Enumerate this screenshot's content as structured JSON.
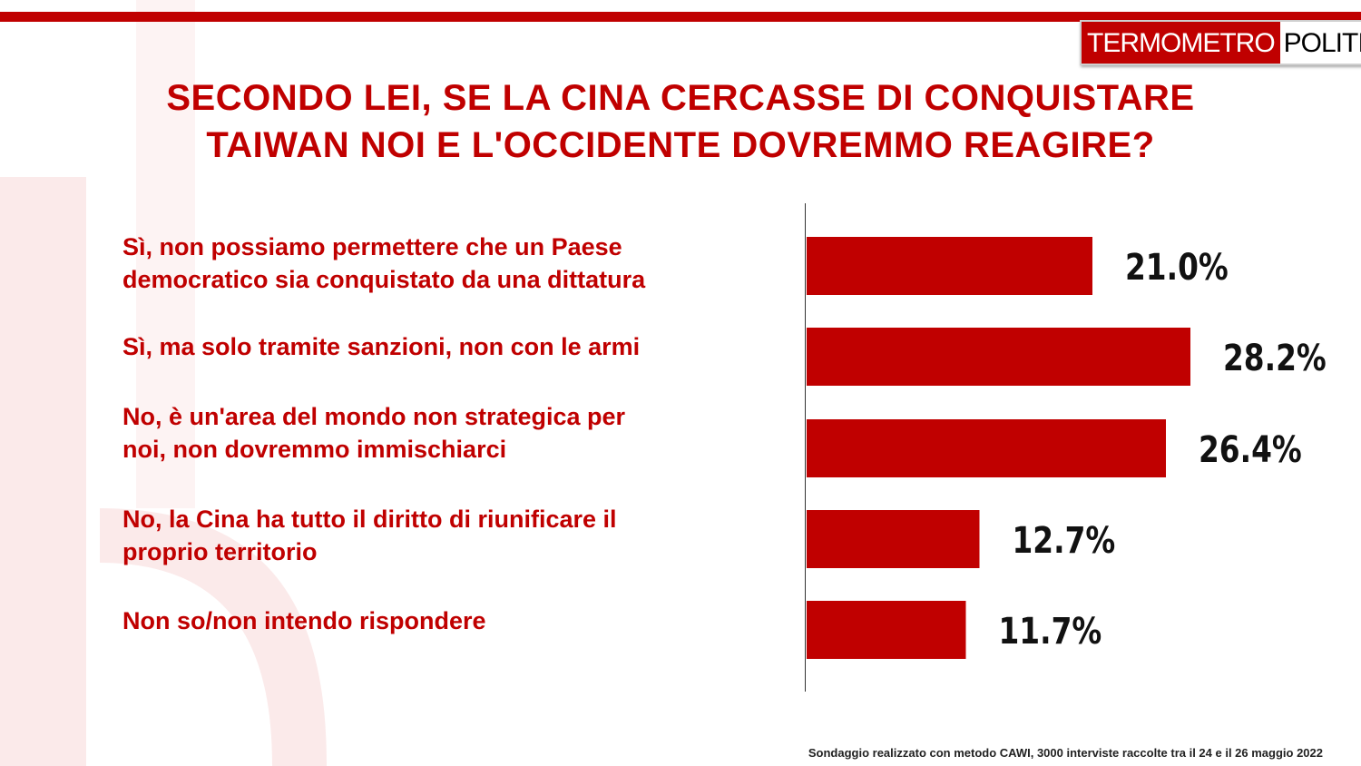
{
  "brand": {
    "part1": "TERMOMETRO",
    "part2": "POLITICO"
  },
  "colors": {
    "accent": "#c00000"
  },
  "chart_data": {
    "type": "bar",
    "orientation": "horizontal",
    "title": "SECONDO LEI, SE LA CINA CERCASSE DI CONQUISTARE TAIWAN NOI E L'OCCIDENTE DOVREMMO REAGIRE?",
    "title_lines": [
      "SECONDO LEI, SE LA CINA CERCASSE DI CONQUISTARE",
      "TAIWAN NOI E L'OCCIDENTE DOVREMMO REAGIRE?"
    ],
    "categories": [
      [
        "Sì, non possiamo permettere che un Paese",
        "democratico sia conquistato da una dittatura"
      ],
      [
        "Sì, ma solo tramite sanzioni, non con le armi"
      ],
      [
        "No, è un'area del mondo non strategica per",
        "noi, non dovremmo immischiarci"
      ],
      [
        "No, la Cina ha tutto il diritto di riunificare il",
        "proprio territorio"
      ],
      [
        "Non so/non intendo rispondere"
      ]
    ],
    "values": [
      21.0,
      28.2,
      26.4,
      12.7,
      11.7
    ],
    "labels": [
      "21.0%",
      "28.2%",
      "26.4%",
      "12.7%",
      "11.7%"
    ],
    "unit": "%",
    "bar_color": "#c00000",
    "xlim": [
      0,
      30
    ],
    "grid": false,
    "legend": "none"
  },
  "footer": "Sondaggio realizzato con metodo CAWI, 3000 interviste raccolte tra il 24 e il 26 maggio 2022"
}
